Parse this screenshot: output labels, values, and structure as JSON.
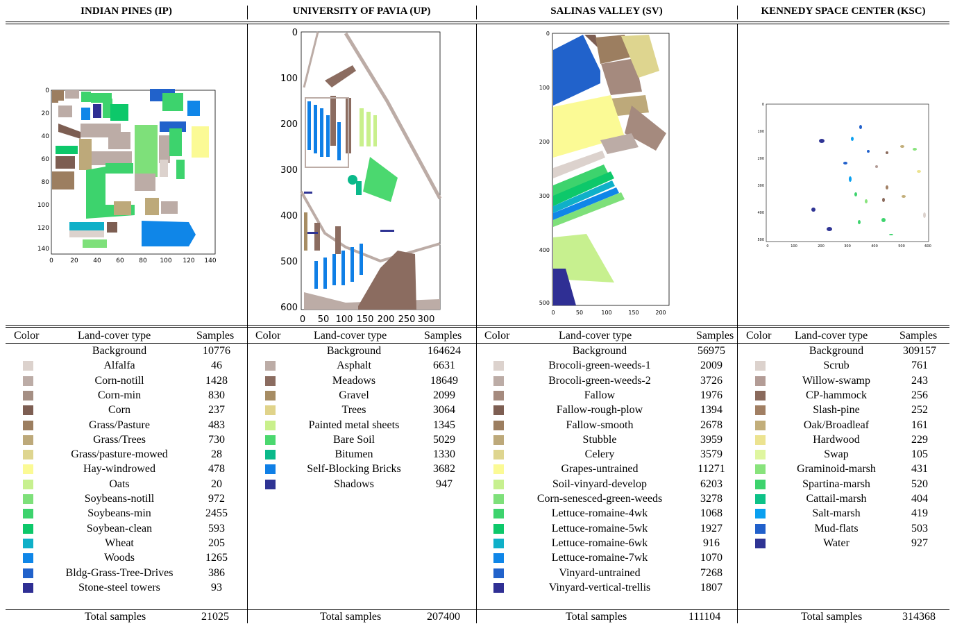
{
  "panels": [
    {
      "id": "ip",
      "title": "INDIAN PINES (IP)",
      "xticks": [
        "0",
        "20",
        "40",
        "60",
        "80",
        "100",
        "120",
        "140"
      ],
      "yticks": [
        "0",
        "20",
        "40",
        "60",
        "80",
        "100",
        "120",
        "140"
      ],
      "rows": [
        {
          "name": "Background",
          "samples": "10776",
          "color": ""
        },
        {
          "name": "Alfalfa",
          "samples": "46",
          "color": "#dcd2cd"
        },
        {
          "name": "Corn-notill",
          "samples": "1428",
          "color": "#bcaca6"
        },
        {
          "name": "Corn-min",
          "samples": "830",
          "color": "#a58f84"
        },
        {
          "name": "Corn",
          "samples": "237",
          "color": "#7d5e52"
        },
        {
          "name": "Grass/Pasture",
          "samples": "483",
          "color": "#9c7e60"
        },
        {
          "name": "Grass/Trees",
          "samples": "730",
          "color": "#bda97a"
        },
        {
          "name": "Grass/pasture-mowed",
          "samples": "28",
          "color": "#ded58f"
        },
        {
          "name": "Hay-windrowed",
          "samples": "478",
          "color": "#fbfa95"
        },
        {
          "name": "Oats",
          "samples": "20",
          "color": "#c7f08f"
        },
        {
          "name": "Soybeans-notill",
          "samples": "972",
          "color": "#7ee07a"
        },
        {
          "name": "Soybeans-min",
          "samples": "2455",
          "color": "#3dd36d"
        },
        {
          "name": "Soybean-clean",
          "samples": "593",
          "color": "#0dc86a"
        },
        {
          "name": "Wheat",
          "samples": "205",
          "color": "#0fb0c8"
        },
        {
          "name": "Woods",
          "samples": "1265",
          "color": "#0f86e8"
        },
        {
          "name": "Bldg-Grass-Tree-Drives",
          "samples": "386",
          "color": "#2162cb"
        },
        {
          "name": "Stone-steel towers",
          "samples": "93",
          "color": "#2f2f94"
        }
      ],
      "total_label": "Total samples",
      "total": "21025"
    },
    {
      "id": "up",
      "title": "UNIVERSITY OF PAVIA (UP)",
      "xticks": [
        "0",
        "50",
        "100",
        "150",
        "200",
        "250",
        "300"
      ],
      "yticks": [
        "0",
        "100",
        "200",
        "300",
        "400",
        "500",
        "600"
      ],
      "rows": [
        {
          "name": "Background",
          "samples": "164624",
          "color": ""
        },
        {
          "name": "Asphalt",
          "samples": "6631",
          "color": "#bcaca6"
        },
        {
          "name": "Meadows",
          "samples": "18649",
          "color": "#8b6c60"
        },
        {
          "name": "Gravel",
          "samples": "2099",
          "color": "#a68c63"
        },
        {
          "name": "Trees",
          "samples": "3064",
          "color": "#e0d38a"
        },
        {
          "name": "Painted metal sheets",
          "samples": "1345",
          "color": "#c9f08c"
        },
        {
          "name": "Bare Soil",
          "samples": "5029",
          "color": "#4bd86f"
        },
        {
          "name": "Bitumen",
          "samples": "1330",
          "color": "#0ab98a"
        },
        {
          "name": "Self-Blocking Bricks",
          "samples": "3682",
          "color": "#0f7fe6"
        },
        {
          "name": "Shadows",
          "samples": "947",
          "color": "#2f3494"
        }
      ],
      "total_label": "Total samples",
      "total": "207400"
    },
    {
      "id": "sv",
      "title": "SALINAS VALLEY (SV)",
      "xticks": [
        "0",
        "50",
        "100",
        "150",
        "200"
      ],
      "yticks": [
        "0",
        "100",
        "200",
        "300",
        "400",
        "500"
      ],
      "rows": [
        {
          "name": "Background",
          "samples": "56975",
          "color": ""
        },
        {
          "name": "Brocoli-green-weeds-1",
          "samples": "2009",
          "color": "#dcd2cd"
        },
        {
          "name": "Brocoli-green-weeds-2",
          "samples": "3726",
          "color": "#bcaca6"
        },
        {
          "name": "Fallow",
          "samples": "1976",
          "color": "#a58a7e"
        },
        {
          "name": "Fallow-rough-plow",
          "samples": "1394",
          "color": "#7d5e52"
        },
        {
          "name": "Fallow-smooth",
          "samples": "2678",
          "color": "#9c7e60"
        },
        {
          "name": "Stubble",
          "samples": "3959",
          "color": "#bda97a"
        },
        {
          "name": "Celery",
          "samples": "3579",
          "color": "#ded58f"
        },
        {
          "name": "Grapes-untrained",
          "samples": "11271",
          "color": "#fbfa95"
        },
        {
          "name": "Soil-vinyard-develop",
          "samples": "6203",
          "color": "#c7f08f"
        },
        {
          "name": "Corn-senesced-green-weeds",
          "samples": "3278",
          "color": "#7ee07a"
        },
        {
          "name": "Lettuce-romaine-4wk",
          "samples": "1068",
          "color": "#3dd36d"
        },
        {
          "name": "Lettuce-romaine-5wk",
          "samples": "1927",
          "color": "#0dc86a"
        },
        {
          "name": "Lettuce-romaine-6wk",
          "samples": "916",
          "color": "#0fb0c8"
        },
        {
          "name": "Lettuce-romaine-7wk",
          "samples": "1070",
          "color": "#0f86e8"
        },
        {
          "name": "Vinyard-untrained",
          "samples": "7268",
          "color": "#2162cb"
        },
        {
          "name": "Vinyard-vertical-trellis",
          "samples": "1807",
          "color": "#2f2f94"
        }
      ],
      "total_label": "Total samples",
      "total": "111104"
    },
    {
      "id": "ksc",
      "title": "KENNEDY SPACE CENTER (KSC)",
      "xticks": [
        "0",
        "100",
        "200",
        "300",
        "400",
        "500",
        "600"
      ],
      "yticks": [
        "0",
        "100",
        "200",
        "300",
        "400",
        "500"
      ],
      "rows": [
        {
          "name": "Background",
          "samples": "309157",
          "color": ""
        },
        {
          "name": "Scrub",
          "samples": "761",
          "color": "#dcd2cd"
        },
        {
          "name": "Willow-swamp",
          "samples": "243",
          "color": "#b39c96"
        },
        {
          "name": "CP-hammock",
          "samples": "256",
          "color": "#8a6a5c"
        },
        {
          "name": "Slash-pine",
          "samples": "252",
          "color": "#a17f63"
        },
        {
          "name": "Oak/Broadleaf",
          "samples": "161",
          "color": "#c2ae7a"
        },
        {
          "name": "Hardwood",
          "samples": "229",
          "color": "#ece390"
        },
        {
          "name": "Swap",
          "samples": "105",
          "color": "#dff6a0"
        },
        {
          "name": "Graminoid-marsh",
          "samples": "431",
          "color": "#88e37c"
        },
        {
          "name": "Spartina-marsh",
          "samples": "520",
          "color": "#3dd36d"
        },
        {
          "name": "Cattail-marsh",
          "samples": "404",
          "color": "#0dc287"
        },
        {
          "name": "Salt-marsh",
          "samples": "419",
          "color": "#0aa0f0"
        },
        {
          "name": "Mud-flats",
          "samples": "503",
          "color": "#2160cb"
        },
        {
          "name": "Water",
          "samples": "927",
          "color": "#2f3494"
        }
      ],
      "total_label": "Total samples",
      "total": "314368"
    }
  ],
  "table_headers": {
    "color": "Color",
    "type": "Land-cover type",
    "samples": "Samples"
  }
}
